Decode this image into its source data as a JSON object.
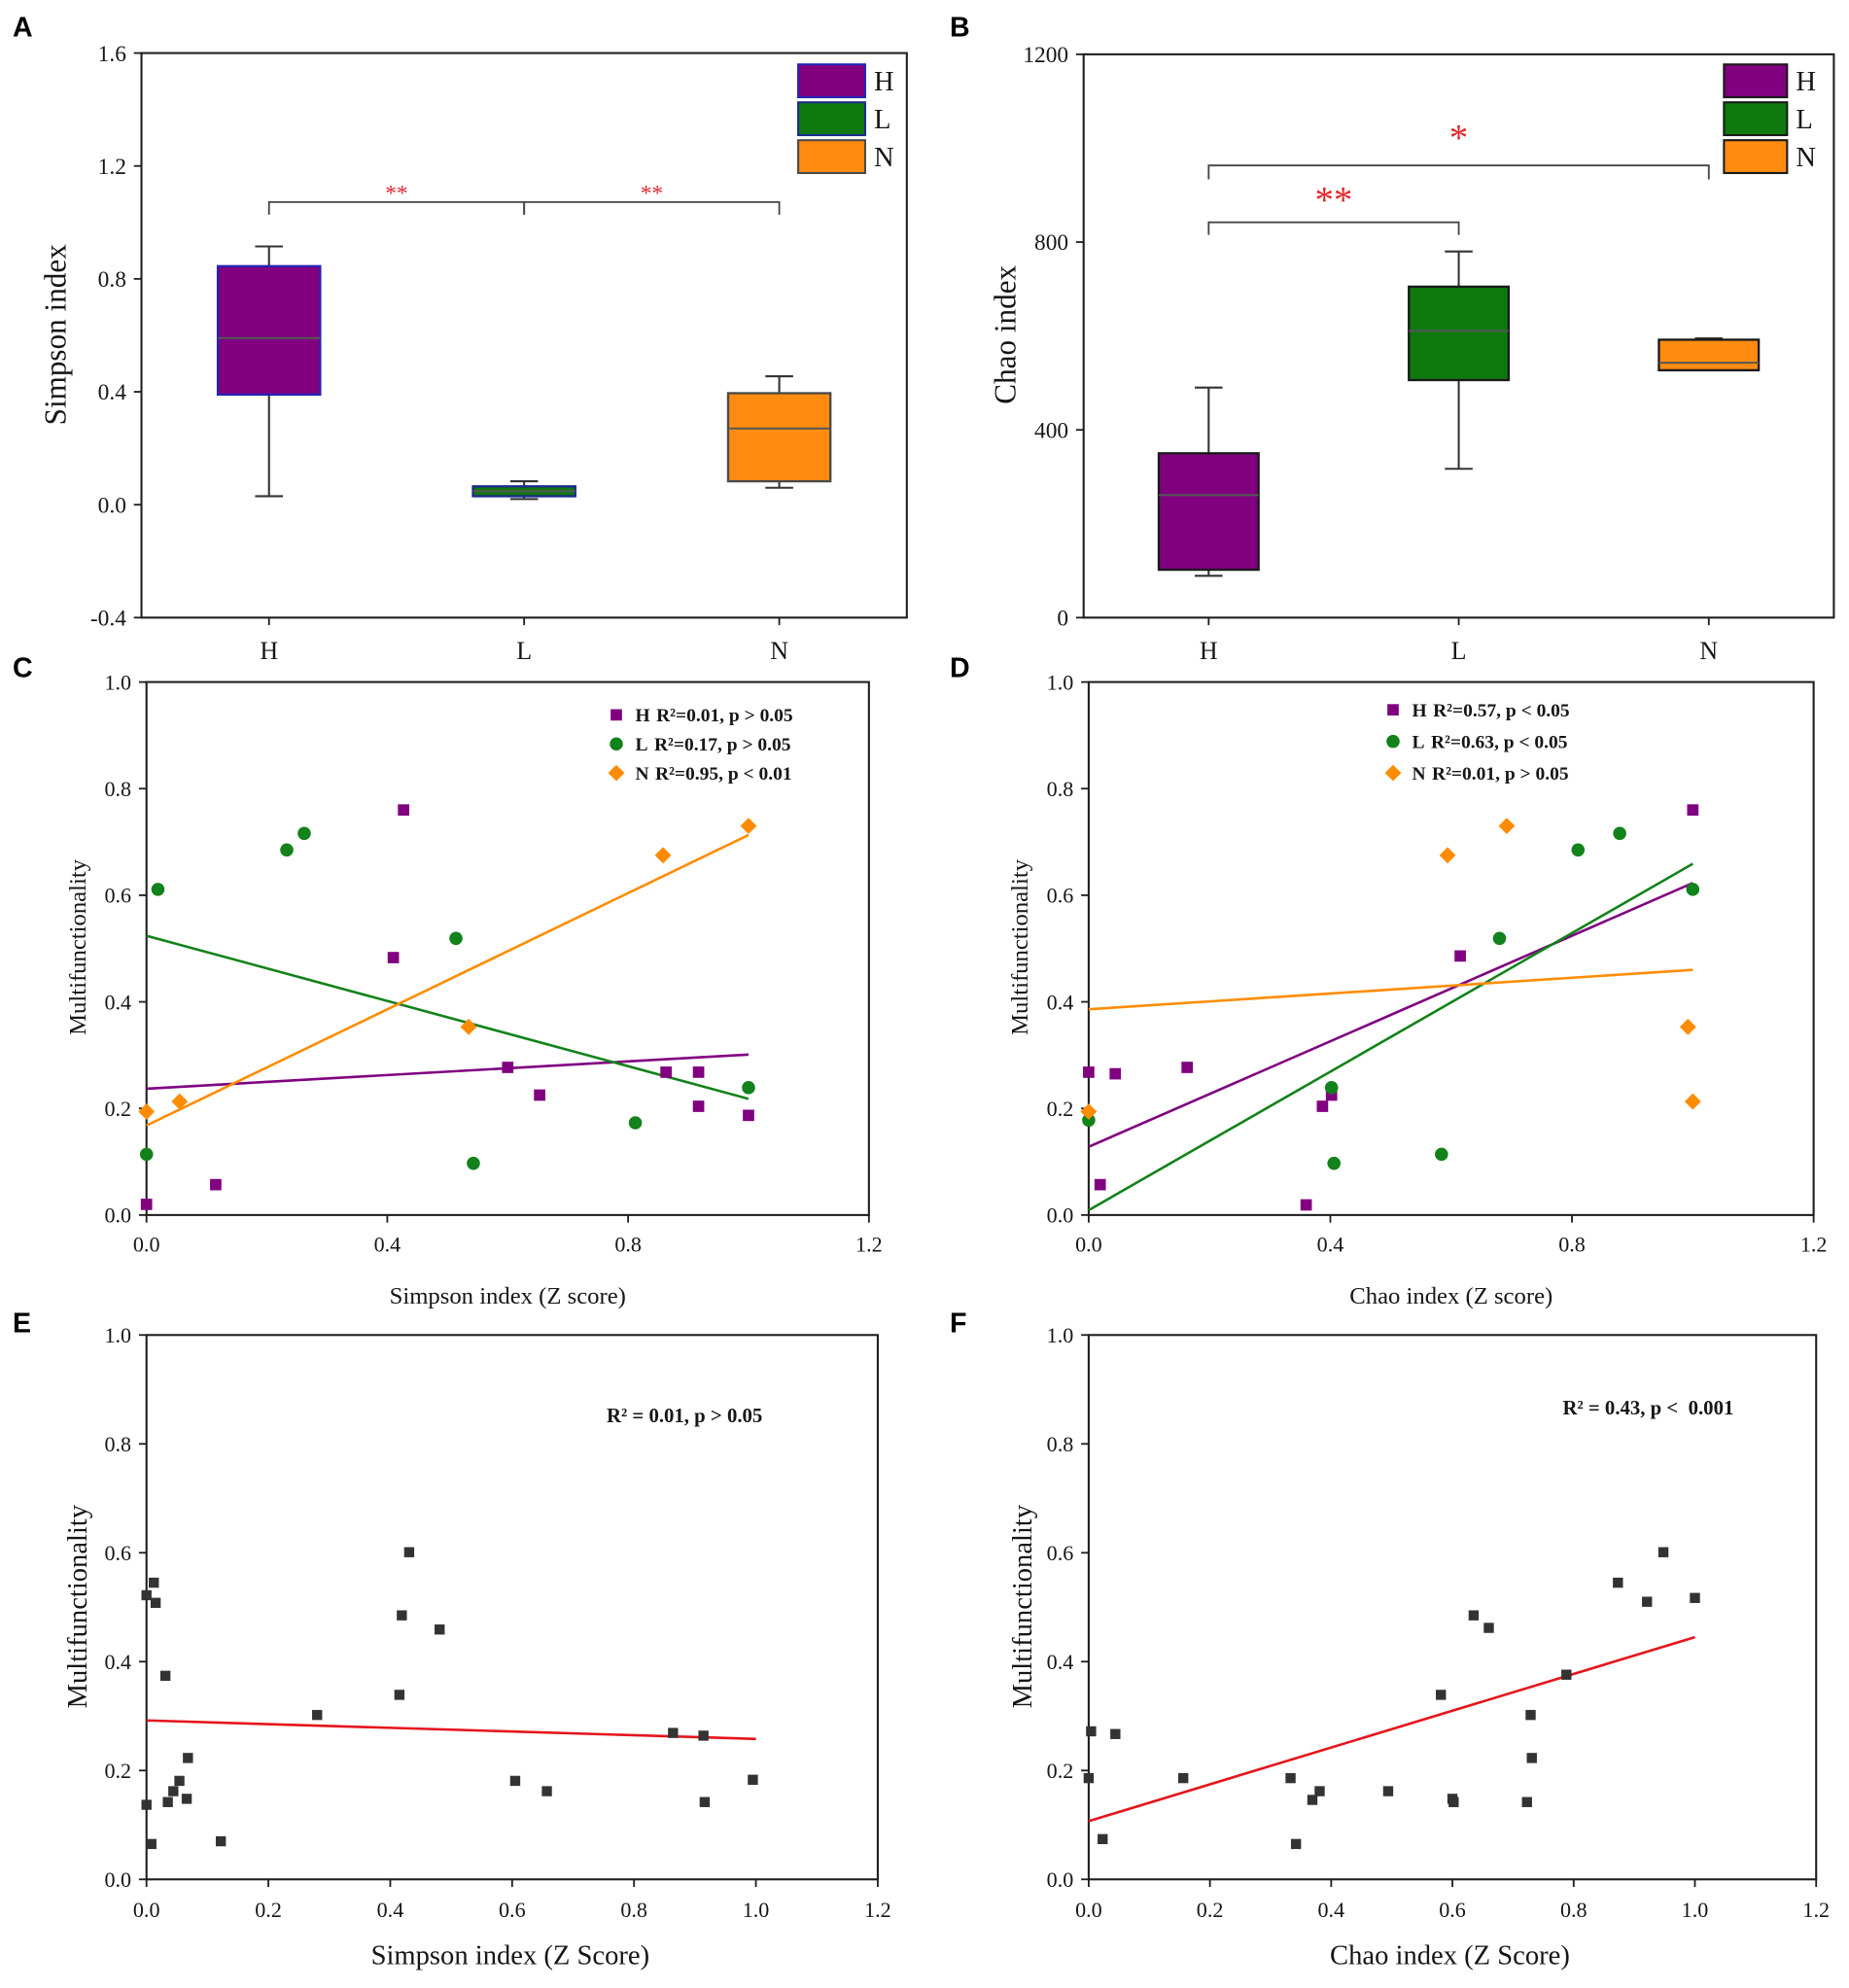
{
  "chart_data": [
    {
      "panel": "A",
      "type": "box",
      "ylabel": "Simpson index",
      "ylim": [
        -0.4,
        1.6
      ],
      "yticks": [
        "-0.4",
        "0.0",
        "0.4",
        "0.8",
        "1.2",
        "1.6"
      ],
      "categories": [
        "H",
        "L",
        "N"
      ],
      "boxes": [
        {
          "name": "H",
          "whisker_low": 0.03,
          "q1": 0.39,
          "median": 0.59,
          "q3": 0.845,
          "whisker_high": 0.915,
          "fill": "#800080",
          "stroke": "#2424b4"
        },
        {
          "name": "L",
          "whisker_low": 0.02,
          "q1": 0.03,
          "median": 0.048,
          "q3": 0.065,
          "whisker_high": 0.083,
          "fill": "#0e7a0e",
          "stroke": "#1c2a8c"
        },
        {
          "name": "N",
          "whisker_low": 0.06,
          "q1": 0.083,
          "median": 0.27,
          "q3": 0.395,
          "whisker_high": 0.455,
          "fill": "#ff8c10",
          "stroke": "#4a4a4a"
        }
      ],
      "significance": [
        {
          "from": 0,
          "to": 1,
          "label": "**",
          "color": "#e3262d"
        },
        {
          "from": 1,
          "to": 2,
          "label": "**",
          "color": "#e3262d"
        }
      ]
    },
    {
      "panel": "B",
      "type": "box",
      "ylabel": "Chao index",
      "ylim": [
        0,
        1200
      ],
      "yticks": [
        "0",
        "400",
        "800",
        "1200"
      ],
      "categories": [
        "H",
        "L",
        "N"
      ],
      "boxes": [
        {
          "name": "H",
          "whisker_low": 89,
          "q1": 102,
          "median": 261,
          "q3": 350,
          "whisker_high": 490,
          "fill": "#800080",
          "stroke": "#1a1a1a"
        },
        {
          "name": "L",
          "whisker_low": 317,
          "q1": 506,
          "median": 611,
          "q3": 705,
          "whisker_high": 780,
          "fill": "#0e7a0e",
          "stroke": "#1a1a1a"
        },
        {
          "name": "N",
          "whisker_low": 527,
          "q1": 527,
          "median": 543,
          "q3": 592,
          "whisker_high": 595,
          "fill": "#ff8c10",
          "stroke": "#1a1a1a"
        }
      ],
      "significance": [
        {
          "from": 0,
          "to": 1,
          "label": "**",
          "color": "#e3262d"
        },
        {
          "from": 0,
          "to": 2,
          "label": "*",
          "color": "#e3262d"
        }
      ]
    },
    {
      "panel": "C",
      "type": "scatter",
      "xlabel": "Simpson index (Z score)",
      "ylabel": "Multifunctionality",
      "xlim": [
        0,
        1.2
      ],
      "ylim": [
        0,
        1.0
      ],
      "xticks": [
        "0.0",
        "0.4",
        "0.8",
        "1.2"
      ],
      "yticks": [
        "0.0",
        "0.2",
        "0.4",
        "0.6",
        "0.8",
        "1.0"
      ],
      "series": [
        {
          "name": "H",
          "stat": "R²=0.01, p > 0.05",
          "marker": "square",
          "color": "#800080",
          "points": [
            [
              0.0,
              0.02
            ],
            [
              0.115,
              0.057
            ],
            [
              0.41,
              0.483
            ],
            [
              0.427,
              0.76
            ],
            [
              0.6,
              0.277
            ],
            [
              0.653,
              0.225
            ],
            [
              0.863,
              0.268
            ],
            [
              0.917,
              0.268
            ],
            [
              0.917,
              0.204
            ],
            [
              1.0,
              0.187
            ]
          ],
          "fit": {
            "x": [
              0,
              1
            ],
            "y": [
              0.237,
              0.301
            ]
          }
        },
        {
          "name": "L",
          "stat": "R²=0.17, p > 0.05",
          "marker": "circle",
          "color": "#12821a",
          "points": [
            [
              0.0,
              0.114
            ],
            [
              0.019,
              0.611
            ],
            [
              0.233,
              0.685
            ],
            [
              0.262,
              0.716
            ],
            [
              0.514,
              0.519
            ],
            [
              0.543,
              0.097
            ],
            [
              0.812,
              0.173
            ],
            [
              1.0,
              0.239
            ]
          ],
          "fit": {
            "x": [
              0,
              1
            ],
            "y": [
              0.524,
              0.218
            ]
          }
        },
        {
          "name": "N",
          "stat": "R²=0.95, p < 0.01",
          "marker": "diamond",
          "color": "#ff8c00",
          "points": [
            [
              0.0,
              0.194
            ],
            [
              0.055,
              0.213
            ],
            [
              0.535,
              0.353
            ],
            [
              0.858,
              0.675
            ],
            [
              1.0,
              0.73
            ]
          ],
          "fit": {
            "x": [
              0,
              1
            ],
            "y": [
              0.168,
              0.713
            ]
          }
        }
      ]
    },
    {
      "panel": "D",
      "type": "scatter",
      "xlabel": "Chao index (Z score)",
      "ylabel": "Multifunctionality",
      "xlim": [
        0,
        1.2
      ],
      "ylim": [
        0,
        1.0
      ],
      "xticks": [
        "0.0",
        "0.4",
        "0.8",
        "1.2"
      ],
      "yticks": [
        "0.0",
        "0.2",
        "0.4",
        "0.6",
        "0.8",
        "1.0"
      ],
      "series": [
        {
          "name": "H",
          "stat": "R²=0.57, p < 0.05",
          "marker": "square",
          "color": "#800080",
          "points": [
            [
              0.0,
              0.268
            ],
            [
              0.019,
              0.057
            ],
            [
              0.044,
              0.265
            ],
            [
              0.163,
              0.277
            ],
            [
              0.36,
              0.019
            ],
            [
              0.387,
              0.204
            ],
            [
              0.402,
              0.225
            ],
            [
              0.615,
              0.486
            ],
            [
              1.0,
              0.76
            ]
          ],
          "fit": {
            "x": [
              0,
              1
            ],
            "y": [
              0.128,
              0.623
            ]
          }
        },
        {
          "name": "L",
          "stat": "R²=0.63, p < 0.05",
          "marker": "circle",
          "color": "#12821a",
          "points": [
            [
              0.0,
              0.178
            ],
            [
              0.402,
              0.239
            ],
            [
              0.406,
              0.097
            ],
            [
              0.584,
              0.114
            ],
            [
              0.68,
              0.519
            ],
            [
              0.81,
              0.685
            ],
            [
              0.879,
              0.716
            ],
            [
              1.0,
              0.611
            ]
          ],
          "fit": {
            "x": [
              0,
              1
            ],
            "y": [
              0.009,
              0.659
            ]
          }
        },
        {
          "name": "N",
          "stat": "R²=0.01, p > 0.05",
          "marker": "diamond",
          "color": "#ff8c00",
          "points": [
            [
              0.0,
              0.194
            ],
            [
              0.594,
              0.675
            ],
            [
              0.692,
              0.73
            ],
            [
              0.992,
              0.353
            ],
            [
              1.0,
              0.213
            ]
          ],
          "fit": {
            "x": [
              0,
              1
            ],
            "y": [
              0.386,
              0.46
            ]
          }
        }
      ]
    },
    {
      "panel": "E",
      "type": "scatter",
      "xlabel": "Simpson index (Z Score)",
      "ylabel": "Multifunctionality",
      "xlim": [
        0,
        1.2
      ],
      "ylim": [
        0,
        1.0
      ],
      "xticks": [
        "0.0",
        "0.2",
        "0.4",
        "0.6",
        "0.8",
        "1.0",
        "1.2"
      ],
      "yticks": [
        "0.0",
        "0.2",
        "0.4",
        "0.6",
        "0.8",
        "1.0"
      ],
      "annotation": "R² = 0.01, p > 0.05",
      "series": [
        {
          "marker": "square",
          "color": "#333333",
          "points": [
            [
              0.0,
              0.137
            ],
            [
              0.0,
              0.522
            ],
            [
              0.008,
              0.065
            ],
            [
              0.012,
              0.545
            ],
            [
              0.015,
              0.508
            ],
            [
              0.031,
              0.374
            ],
            [
              0.035,
              0.142
            ],
            [
              0.044,
              0.162
            ],
            [
              0.054,
              0.181
            ],
            [
              0.066,
              0.148
            ],
            [
              0.068,
              0.223
            ],
            [
              0.122,
              0.07
            ],
            [
              0.28,
              0.302
            ],
            [
              0.415,
              0.339
            ],
            [
              0.419,
              0.485
            ],
            [
              0.431,
              0.601
            ],
            [
              0.481,
              0.459
            ],
            [
              0.605,
              0.181
            ],
            [
              0.657,
              0.162
            ],
            [
              0.864,
              0.269
            ],
            [
              0.914,
              0.264
            ],
            [
              0.916,
              0.142
            ],
            [
              0.995,
              0.183
            ]
          ],
          "fit": {
            "x": [
              0,
              1
            ],
            "y": [
              0.292,
              0.258
            ],
            "color": "#e5141b"
          }
        }
      ]
    },
    {
      "panel": "F",
      "type": "scatter",
      "xlabel": "Chao index (Z Score)",
      "ylabel": "Multifunctionality",
      "xlim": [
        0,
        1.2
      ],
      "ylim": [
        0,
        1.0
      ],
      "xticks": [
        "0.0",
        "0.2",
        "0.4",
        "0.6",
        "0.8",
        "1.0",
        "1.2"
      ],
      "yticks": [
        "0.0",
        "0.2",
        "0.4",
        "0.6",
        "0.8",
        "1.0"
      ],
      "annotation": "R² = 0.43, p <  0.001",
      "series": [
        {
          "marker": "square",
          "color": "#333333",
          "points": [
            [
              0.0,
              0.186
            ],
            [
              0.004,
              0.272
            ],
            [
              0.023,
              0.074
            ],
            [
              0.044,
              0.267
            ],
            [
              0.156,
              0.186
            ],
            [
              0.333,
              0.186
            ],
            [
              0.342,
              0.065
            ],
            [
              0.369,
              0.146
            ],
            [
              0.381,
              0.162
            ],
            [
              0.494,
              0.162
            ],
            [
              0.581,
              0.339
            ],
            [
              0.6,
              0.148
            ],
            [
              0.602,
              0.142
            ],
            [
              0.635,
              0.485
            ],
            [
              0.66,
              0.462
            ],
            [
              0.723,
              0.142
            ],
            [
              0.729,
              0.302
            ],
            [
              0.731,
              0.223
            ],
            [
              0.788,
              0.376
            ],
            [
              0.873,
              0.545
            ],
            [
              0.921,
              0.51
            ],
            [
              0.948,
              0.601
            ],
            [
              1.0,
              0.517
            ]
          ],
          "fit": {
            "x": [
              0,
              1
            ],
            "y": [
              0.107,
              0.445
            ],
            "color": "#e5141b"
          }
        }
      ]
    }
  ]
}
